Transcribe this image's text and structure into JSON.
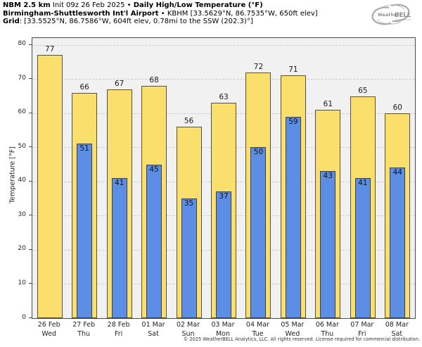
{
  "header": {
    "line1": {
      "model_bold": "NBM 2.5 km",
      "init_normal": " Init 09z 26 Feb 2025 • ",
      "product_bold": "Daily High/Low Temperature (°F)"
    },
    "line2": {
      "station_bold": "Birmingham-Shuttlesworth Int'l Airport",
      "station_normal": " • KBHM [33.5629°N, 86.7535°W, 650ft elev]"
    },
    "line3": {
      "grid_bold": "Grid",
      "grid_normal": ": [33.5525°N, 86.7586°W, 604ft elev, 0.78mi to the SSW (202.3)°]"
    }
  },
  "logo": {
    "text_weather": "Weather",
    "text_bell": "BELL",
    "subtext": "Analytics LLC"
  },
  "chart_data": {
    "type": "bar",
    "title": "Daily High/Low Temperature (°F)",
    "ylabel": "Temperature [°F]",
    "ylim": [
      0,
      82
    ],
    "yticks": [
      0,
      10,
      20,
      30,
      40,
      50,
      60,
      70,
      80
    ],
    "grid": "horizontal-dashed",
    "legend": "none",
    "categories": [
      {
        "date": "26 Feb",
        "day": "Wed"
      },
      {
        "date": "27 Feb",
        "day": "Thu"
      },
      {
        "date": "28 Feb",
        "day": "Fri"
      },
      {
        "date": "01 Mar",
        "day": "Sat"
      },
      {
        "date": "02 Mar",
        "day": "Sun"
      },
      {
        "date": "03 Mar",
        "day": "Mon"
      },
      {
        "date": "04 Mar",
        "day": "Tue"
      },
      {
        "date": "05 Mar",
        "day": "Wed"
      },
      {
        "date": "06 Mar",
        "day": "Thu"
      },
      {
        "date": "07 Mar",
        "day": "Fri"
      },
      {
        "date": "08 Mar",
        "day": "Sat"
      }
    ],
    "series": [
      {
        "name": "High",
        "color": "#fbdf6c",
        "values": [
          77,
          66,
          67,
          68,
          56,
          63,
          72,
          71,
          61,
          65,
          60
        ]
      },
      {
        "name": "Low",
        "color": "#5b8ee4",
        "values": [
          null,
          51,
          41,
          45,
          35,
          37,
          50,
          59,
          43,
          41,
          44
        ]
      }
    ]
  },
  "colors": {
    "plot_bg": "#f1f1f2",
    "grid": "#cbcbcb",
    "axis": "#4a4a4a",
    "high_fill": "#fbdf6c",
    "low_fill": "#5b8ee4",
    "logo_gray": "#9a9a9a"
  },
  "footer": {
    "copyright": "© 2025 WeatherBELL Analytics, LLC. All rights reserved. License required for commercial distribution."
  }
}
